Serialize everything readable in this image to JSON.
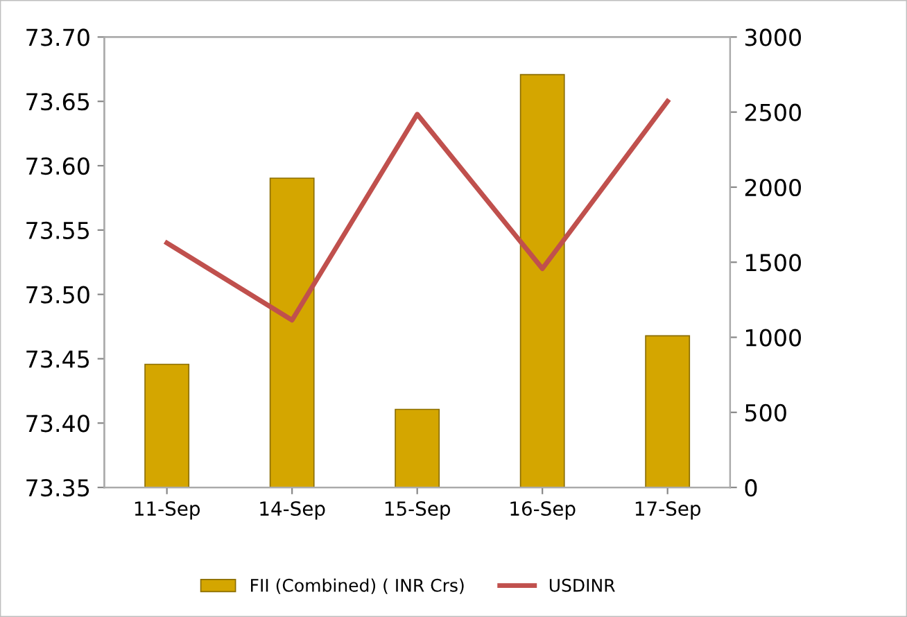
{
  "chart_data": {
    "type": "bar",
    "categories": [
      "11-Sep",
      "14-Sep",
      "15-Sep",
      "16-Sep",
      "17-Sep"
    ],
    "series": [
      {
        "name": "FII (Combined) ( INR Crs)",
        "axis": "y2",
        "color": "#d4a600",
        "values": [
          820,
          2060,
          520,
          2750,
          1010
        ]
      },
      {
        "name": "USDINR",
        "type": "line",
        "axis": "y",
        "color": "#c0504d",
        "values": [
          73.54,
          73.48,
          73.64,
          73.52,
          73.65
        ]
      }
    ],
    "ylim": [
      73.35,
      73.7
    ],
    "yticks": [
      {
        "value": 73.35,
        "label": "73.35"
      },
      {
        "value": 73.4,
        "label": "73.40"
      },
      {
        "value": 73.45,
        "label": "73.45"
      },
      {
        "value": 73.5,
        "label": "73.50"
      },
      {
        "value": 73.55,
        "label": "73.55"
      },
      {
        "value": 73.6,
        "label": "73.60"
      },
      {
        "value": 73.65,
        "label": "73.65"
      },
      {
        "value": 73.7,
        "label": "73.70"
      }
    ],
    "y2lim": [
      0,
      3000
    ],
    "y2ticks": [
      0,
      500,
      1000,
      1500,
      2000,
      2500,
      3000
    ],
    "grid": false,
    "legend": "bottom",
    "marker": "none",
    "line_style": "solid"
  }
}
